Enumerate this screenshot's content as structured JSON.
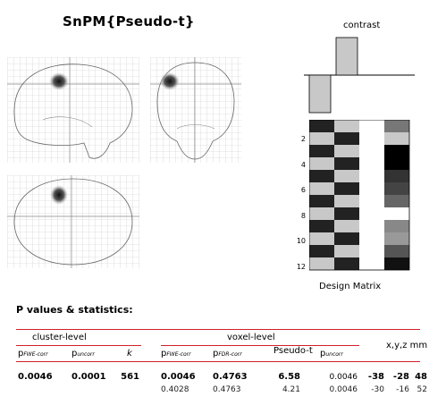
{
  "title": "SnPM{Pseudo-t}",
  "contrast_label": "contrast",
  "design_matrix_label": "Design Matrix",
  "design_matrix_ticks": [
    "2",
    "4",
    "6",
    "8",
    "10",
    "12"
  ],
  "stats_heading": "P values & statistics:",
  "headers": {
    "cluster_level": "cluster-level",
    "voxel_level": "voxel-level",
    "p_fwe_corr": "p",
    "p_fwe_corr_sub": "FWE-corr",
    "p_uncorr": "p",
    "p_uncorr_sub": "uncorr",
    "k": "k",
    "p_fdr_corr": "p",
    "p_fdr_corr_sub": "FDR-corr",
    "pseudo_t": "Pseudo-t",
    "coords": "x,y,z mm"
  },
  "rows": [
    {
      "c_fwe": "0.0046",
      "c_unc": "0.0001",
      "k": "561",
      "v_fwe": "0.0046",
      "v_fdr": "0.4763",
      "t": "6.58",
      "v_unc": "0.0046",
      "x": "-38",
      "y": "-28",
      "z": "48"
    },
    {
      "c_fwe": "",
      "c_unc": "",
      "k": "",
      "v_fwe": "0.4028",
      "v_fdr": "0.4763",
      "t": "4.21",
      "v_unc": "0.0046",
      "x": "-30",
      "y": "-16",
      "z": "52"
    }
  ],
  "colors": {
    "accent": "#d0202a"
  }
}
